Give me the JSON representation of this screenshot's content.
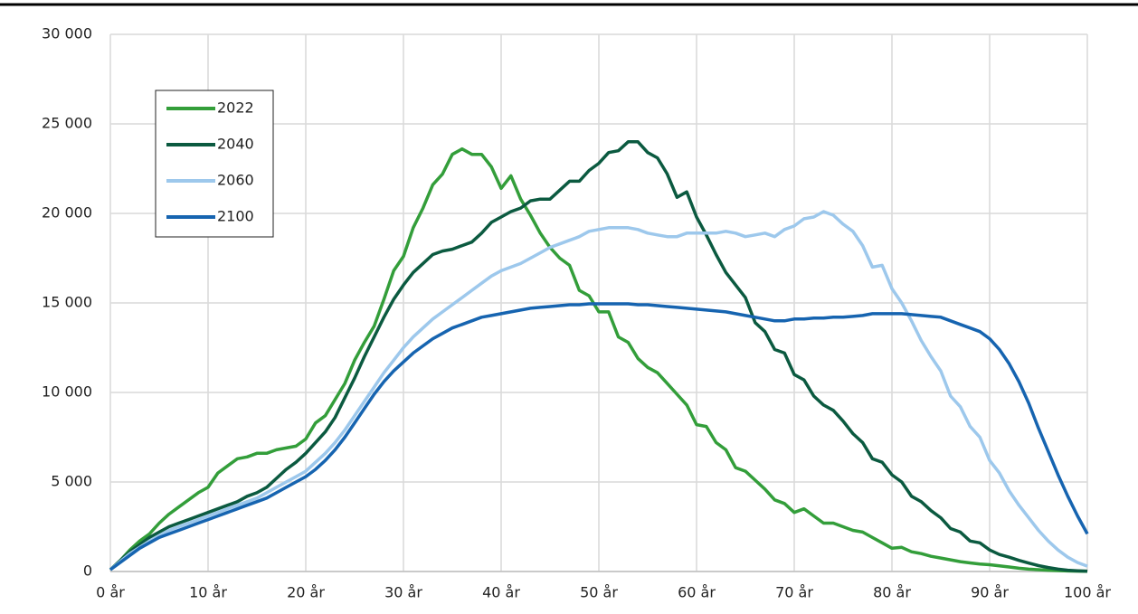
{
  "chart_data": {
    "type": "line",
    "x": [
      0,
      1,
      2,
      3,
      4,
      5,
      6,
      7,
      8,
      9,
      10,
      11,
      12,
      13,
      14,
      15,
      16,
      17,
      18,
      19,
      20,
      21,
      22,
      23,
      24,
      25,
      26,
      27,
      28,
      29,
      30,
      31,
      32,
      33,
      34,
      35,
      36,
      37,
      38,
      39,
      40,
      41,
      42,
      43,
      44,
      45,
      46,
      47,
      48,
      49,
      50,
      51,
      52,
      53,
      54,
      55,
      56,
      57,
      58,
      59,
      60,
      61,
      62,
      63,
      64,
      65,
      66,
      67,
      68,
      69,
      70,
      71,
      72,
      73,
      74,
      75,
      76,
      77,
      78,
      79,
      80,
      81,
      82,
      83,
      84,
      85,
      86,
      87,
      88,
      89,
      90,
      91,
      92,
      93,
      94,
      95,
      96,
      97,
      98,
      99,
      100
    ],
    "series": [
      {
        "name": "2022",
        "color": "#339e3a",
        "values": [
          100,
          600,
          1200,
          1700,
          2100,
          2700,
          3200,
          3600,
          4000,
          4400,
          4700,
          5500,
          5900,
          6300,
          6400,
          6600,
          6600,
          6800,
          6900,
          7000,
          7400,
          8300,
          8700,
          9600,
          10500,
          11800,
          12800,
          13700,
          15200,
          16800,
          17600,
          19200,
          20300,
          21600,
          22200,
          23300,
          23600,
          23300,
          23300,
          22600,
          21400,
          22100,
          20800,
          19900,
          18900,
          18100,
          17500,
          17100,
          15700,
          15400,
          14500,
          14500,
          13100,
          12800,
          11900,
          11400,
          11100,
          10500,
          9900,
          9300,
          8200,
          8100,
          7200,
          6800,
          5800,
          5600,
          5100,
          4600,
          4000,
          3800,
          3300,
          3500,
          3100,
          2700,
          2700,
          2500,
          2300,
          2200,
          1900,
          1600,
          1300,
          1350,
          1100,
          1000,
          850,
          750,
          650,
          550,
          480,
          420,
          380,
          320,
          250,
          180,
          130,
          100,
          70,
          50,
          30,
          20,
          10
        ]
      },
      {
        "name": "2040",
        "color": "#0b5a40",
        "values": [
          100,
          600,
          1100,
          1500,
          1900,
          2200,
          2500,
          2700,
          2900,
          3100,
          3300,
          3500,
          3700,
          3900,
          4200,
          4400,
          4700,
          5200,
          5700,
          6100,
          6600,
          7200,
          7800,
          8600,
          9700,
          10800,
          12000,
          13100,
          14200,
          15200,
          16000,
          16700,
          17200,
          17700,
          17900,
          18000,
          18200,
          18400,
          18900,
          19500,
          19800,
          20100,
          20300,
          20700,
          20800,
          20800,
          21300,
          21800,
          21800,
          22400,
          22800,
          23400,
          23500,
          24000,
          24000,
          23400,
          23100,
          22200,
          20900,
          21200,
          19800,
          18800,
          17700,
          16700,
          16000,
          15300,
          13900,
          13400,
          12400,
          12200,
          11000,
          10700,
          9800,
          9300,
          9000,
          8400,
          7700,
          7200,
          6300,
          6100,
          5400,
          5000,
          4200,
          3900,
          3400,
          3000,
          2400,
          2200,
          1700,
          1600,
          1200,
          950,
          800,
          620,
          470,
          330,
          220,
          130,
          70,
          40,
          20
        ]
      },
      {
        "name": "2060",
        "color": "#9dc8ec",
        "values": [
          100,
          550,
          1000,
          1350,
          1700,
          2000,
          2300,
          2500,
          2700,
          2900,
          3100,
          3300,
          3500,
          3700,
          3900,
          4100,
          4400,
          4700,
          5000,
          5300,
          5600,
          6100,
          6600,
          7200,
          7900,
          8700,
          9500,
          10300,
          11100,
          11800,
          12500,
          13100,
          13600,
          14100,
          14500,
          14900,
          15300,
          15700,
          16100,
          16500,
          16800,
          17000,
          17200,
          17500,
          17800,
          18100,
          18300,
          18500,
          18700,
          19000,
          19100,
          19200,
          19200,
          19200,
          19100,
          18900,
          18800,
          18700,
          18700,
          18900,
          18900,
          18900,
          18900,
          19000,
          18900,
          18700,
          18800,
          18900,
          18700,
          19100,
          19300,
          19700,
          19800,
          20100,
          19900,
          19400,
          19000,
          18200,
          17000,
          17100,
          15800,
          15000,
          14000,
          12900,
          12000,
          11200,
          9800,
          9200,
          8100,
          7500,
          6200,
          5500,
          4500,
          3700,
          3000,
          2300,
          1700,
          1200,
          800,
          500,
          300
        ]
      },
      {
        "name": "2100",
        "color": "#1664b0",
        "values": [
          100,
          500,
          900,
          1300,
          1600,
          1900,
          2100,
          2300,
          2500,
          2700,
          2900,
          3100,
          3300,
          3500,
          3700,
          3900,
          4100,
          4400,
          4700,
          5000,
          5300,
          5700,
          6200,
          6800,
          7500,
          8300,
          9100,
          9900,
          10600,
          11200,
          11700,
          12200,
          12600,
          13000,
          13300,
          13600,
          13800,
          14000,
          14200,
          14300,
          14400,
          14500,
          14600,
          14700,
          14750,
          14800,
          14850,
          14900,
          14900,
          14950,
          14950,
          14950,
          14950,
          14950,
          14900,
          14900,
          14850,
          14800,
          14750,
          14700,
          14650,
          14600,
          14550,
          14500,
          14400,
          14300,
          14200,
          14100,
          14000,
          14000,
          14100,
          14100,
          14150,
          14150,
          14200,
          14200,
          14250,
          14300,
          14400,
          14400,
          14400,
          14400,
          14350,
          14300,
          14250,
          14200,
          14000,
          13800,
          13600,
          13400,
          13000,
          12400,
          11600,
          10600,
          9400,
          8000,
          6700,
          5400,
          4200,
          3100,
          2100
        ]
      }
    ],
    "xlim": [
      0,
      100
    ],
    "xticks": [
      {
        "value": 0,
        "label": "0 år"
      },
      {
        "value": 10,
        "label": "10 år"
      },
      {
        "value": 20,
        "label": "20 år"
      },
      {
        "value": 30,
        "label": "30 år"
      },
      {
        "value": 40,
        "label": "40 år"
      },
      {
        "value": 50,
        "label": "50 år"
      },
      {
        "value": 60,
        "label": "60 år"
      },
      {
        "value": 70,
        "label": "70 år"
      },
      {
        "value": 80,
        "label": "80 år"
      },
      {
        "value": 90,
        "label": "90 år"
      },
      {
        "value": 100,
        "label": "100 år"
      }
    ],
    "ylim": [
      0,
      30000
    ],
    "yticks": [
      0,
      {
        "value": 5000,
        "label": "5 000"
      },
      {
        "value": 10000,
        "label": "10 000"
      },
      {
        "value": 15000,
        "label": "15 000"
      },
      {
        "value": 20000,
        "label": "20 000"
      },
      {
        "value": 25000,
        "label": "25 000"
      },
      {
        "value": 30000,
        "label": "30 000"
      }
    ],
    "grid": true,
    "legend": "upper left"
  }
}
